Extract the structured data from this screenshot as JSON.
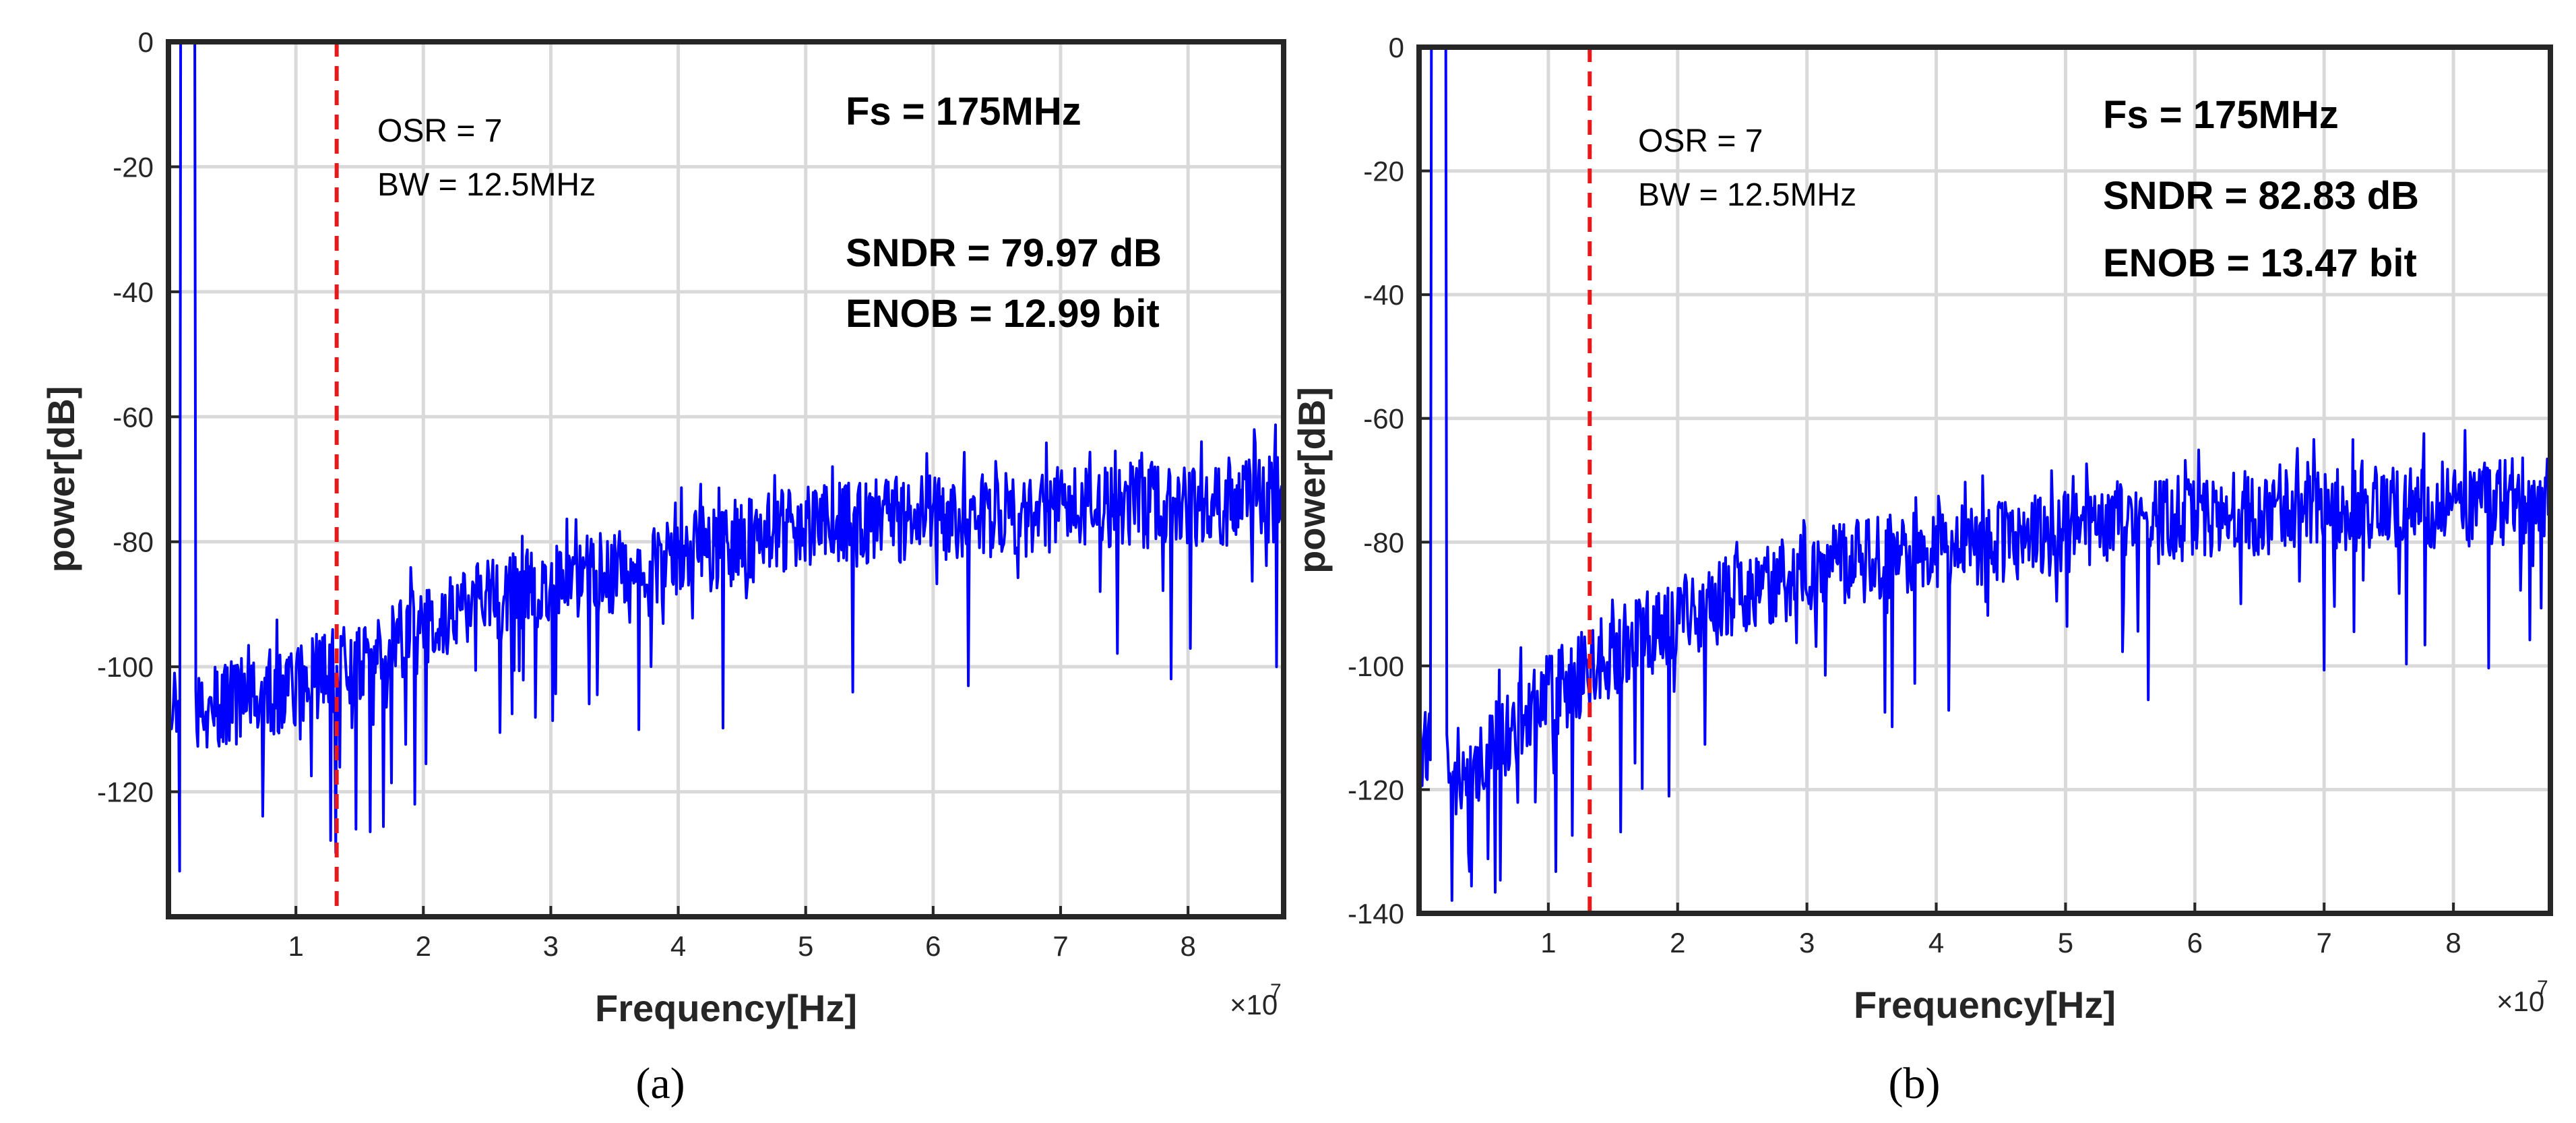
{
  "chart_data": [
    {
      "type": "line",
      "panel_label": "(a)",
      "xlabel": "Frequency[Hz]",
      "ylabel": "power[dB]",
      "x_exponent_base": "×10",
      "x_exponent_power": "7",
      "xlim": [
        0,
        8.75
      ],
      "ylim": [
        -140,
        0
      ],
      "xticks": [
        1,
        2,
        3,
        4,
        5,
        6,
        7,
        8
      ],
      "xtick_labels": [
        "1",
        "2",
        "3",
        "4",
        "5",
        "6",
        "7",
        "8"
      ],
      "yticks": [
        0,
        -20,
        -40,
        -60,
        -80,
        -100,
        -120
      ],
      "ytick_labels": [
        "0",
        "-20",
        "-40",
        "-60",
        "-80",
        "-100",
        "-120"
      ],
      "grid": true,
      "series_color": "#0000FF",
      "marker_color": "#E8191A",
      "bandwidth_marker_x": 1.32,
      "annotations": {
        "osr": "OSR = 7",
        "bw": "BW = 12.5MHz",
        "fs": "Fs = 175MHz",
        "sndr": "SNDR = 79.97 dB",
        "enob": "ENOB = 12.99 bit"
      },
      "signal_tone": {
        "x": 0.15,
        "y": 0
      },
      "noise_floor_profile": {
        "x": [
          0,
          0.5,
          1.0,
          1.5,
          2.0,
          2.5,
          3.0,
          3.5,
          4.0,
          4.5,
          5.0,
          5.5,
          6.0,
          6.5,
          7.0,
          7.5,
          8.0,
          8.75
        ],
        "y": [
          -108,
          -106,
          -103,
          -99,
          -94,
          -90,
          -87,
          -85,
          -82,
          -80,
          -78,
          -77,
          -76,
          -76,
          -75,
          -74,
          -74,
          -73
        ]
      }
    },
    {
      "type": "line",
      "panel_label": "(b)",
      "xlabel": "Frequency[Hz]",
      "ylabel": "power[dB]",
      "x_exponent_base": "×10",
      "x_exponent_power": "7",
      "xlim": [
        0,
        8.75
      ],
      "ylim": [
        -140,
        0
      ],
      "xticks": [
        1,
        2,
        3,
        4,
        5,
        6,
        7,
        8
      ],
      "xtick_labels": [
        "1",
        "2",
        "3",
        "4",
        "5",
        "6",
        "7",
        "8"
      ],
      "yticks": [
        0,
        -20,
        -40,
        -60,
        -80,
        -100,
        -120,
        -140
      ],
      "ytick_labels": [
        "0",
        "-20",
        "-40",
        "-60",
        "-80",
        "-100",
        "-120",
        "-140"
      ],
      "grid": true,
      "series_color": "#0000FF",
      "marker_color": "#E8191A",
      "bandwidth_marker_x": 1.32,
      "annotations": {
        "osr": "OSR = 7",
        "bw": "BW = 12.5MHz",
        "fs": "Fs = 175MHz",
        "sndr": "SNDR = 82.83 dB",
        "enob": "ENOB = 13.47 bit"
      },
      "signal_tone": {
        "x": 0.15,
        "y": 0
      },
      "noise_floor_profile": {
        "x": [
          0,
          0.3,
          0.6,
          1.0,
          1.5,
          2.0,
          2.5,
          3.0,
          3.5,
          4.0,
          4.5,
          5.0,
          5.5,
          6.0,
          6.5,
          7.0,
          7.5,
          8.0,
          8.75
        ],
        "y": [
          -112,
          -118,
          -112,
          -105,
          -98,
          -92,
          -88,
          -85,
          -83,
          -81,
          -80,
          -78,
          -77,
          -76,
          -75,
          -75,
          -74,
          -74,
          -73
        ]
      }
    }
  ]
}
